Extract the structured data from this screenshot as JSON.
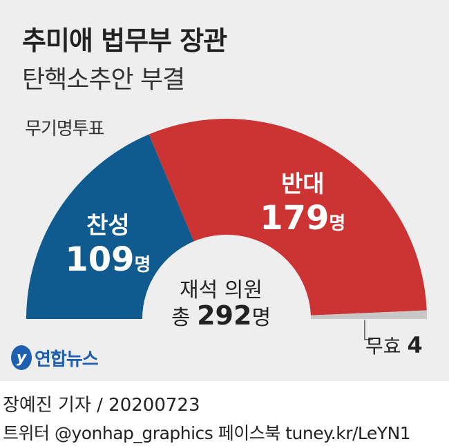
{
  "title": "추미애 법무부 장관",
  "subtitle": "탄핵소추안 부결",
  "chart_label": "무기명투표",
  "center": {
    "line1": "재석 의원",
    "prefix": "총",
    "total": "292",
    "unit": "명"
  },
  "abstain_label": "무효",
  "abstain_value": "4",
  "logo_text": "연합뉴스",
  "credit": "장예진 기자 / 20200723",
  "social": "트위터 @yonhap_graphics  페이스북 tuney.kr/LeYN1",
  "colors": {
    "yes": "#0f5a8f",
    "no": "#cc3333",
    "invalid": "#c8c8c8",
    "logo": "#1e5fb0"
  },
  "chart_data": {
    "type": "pie",
    "subtype": "half-donut",
    "title": "추미애 법무부 장관 탄핵소추안 부결",
    "total": 292,
    "slices": [
      {
        "label": "찬성",
        "value": 109,
        "value_text": "109",
        "unit": "명"
      },
      {
        "label": "반대",
        "value": 179,
        "value_text": "179",
        "unit": "명"
      },
      {
        "label": "무효",
        "value": 4,
        "value_text": "4",
        "unit": ""
      }
    ]
  }
}
